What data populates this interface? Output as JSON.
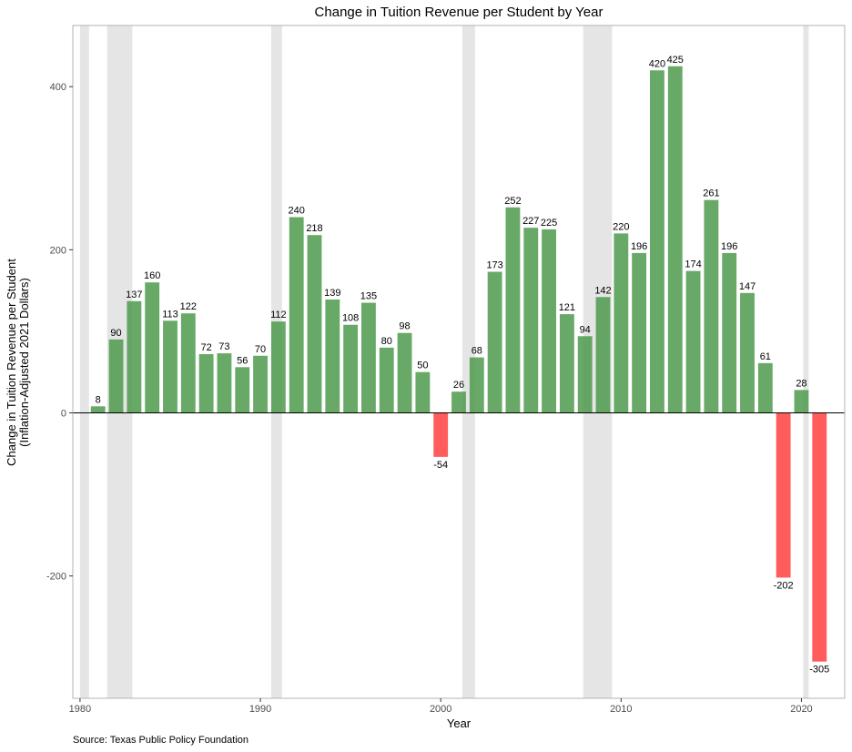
{
  "chart_data": {
    "type": "bar",
    "title": "Change in Tuition Revenue per Student by Year",
    "xlabel": "Year",
    "ylabel_line1": "Change in Tuition Revenue per Student",
    "ylabel_line2": "(Inflation-Adjusted 2021 Dollars)",
    "source": "Source: Texas Public Policy Foundation",
    "xlim": [
      1979.6,
      2022.4
    ],
    "ylim": [
      -350,
      475
    ],
    "x_ticks": [
      1980,
      1990,
      2000,
      2010,
      2020
    ],
    "y_ticks": [
      -200,
      0,
      200,
      400
    ],
    "grid": false,
    "positive_color": "#4e9a4e",
    "negative_color": "#ff5c5c",
    "recession_color": "#e5e5e5",
    "recession_shading": [
      {
        "start": 1980.0,
        "end": 1980.5
      },
      {
        "start": 1981.5,
        "end": 1982.9
      },
      {
        "start": 1990.6,
        "end": 1991.2
      },
      {
        "start": 2001.2,
        "end": 2001.9
      },
      {
        "start": 2007.9,
        "end": 2009.5
      },
      {
        "start": 2020.1,
        "end": 2020.4
      }
    ],
    "series": [
      {
        "x": [
          1981,
          1982,
          1983,
          1984,
          1985,
          1986,
          1987,
          1988,
          1989,
          1990,
          1991,
          1992,
          1993,
          1994,
          1995,
          1996,
          1997,
          1998,
          1999,
          2000,
          2001,
          2002,
          2003,
          2004,
          2005,
          2006,
          2007,
          2008,
          2009,
          2010,
          2011,
          2012,
          2013,
          2014,
          2015,
          2016,
          2017,
          2018,
          2019,
          2020,
          2021
        ],
        "values": [
          8,
          90,
          137,
          160,
          113,
          122,
          72,
          73,
          56,
          70,
          112,
          240,
          218,
          139,
          108,
          135,
          80,
          98,
          50,
          -54,
          26,
          68,
          173,
          252,
          227,
          225,
          121,
          94,
          142,
          220,
          196,
          420,
          425,
          174,
          261,
          196,
          147,
          61,
          -202,
          28,
          -305
        ]
      }
    ]
  }
}
